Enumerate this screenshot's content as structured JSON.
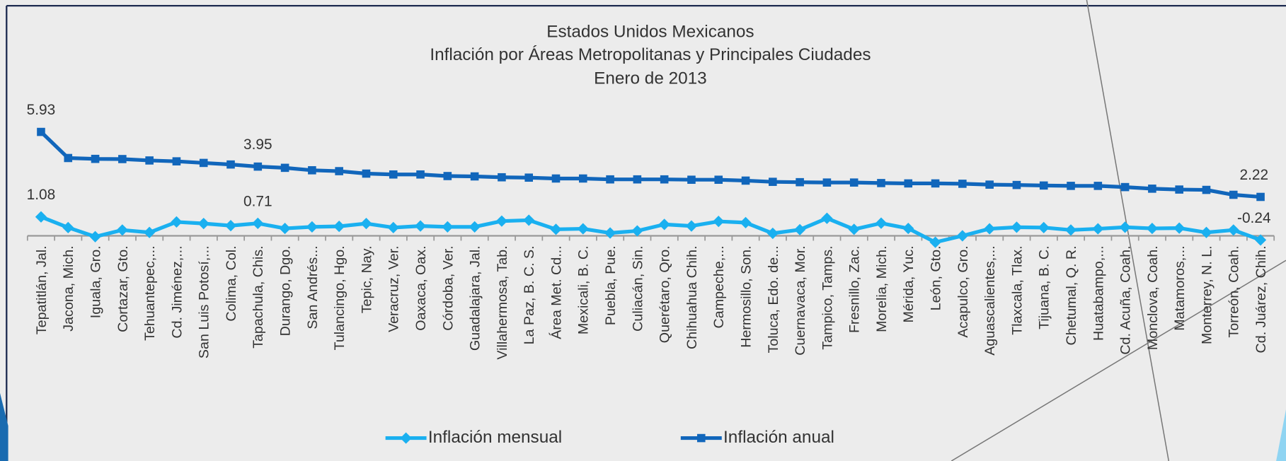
{
  "chart_data": {
    "type": "line",
    "title": [
      "Estados Unidos Mexicanos",
      "Inflación por Áreas Metropolitanas y Principales Ciudades",
      "Enero de 2013"
    ],
    "categories": [
      "Tepatitlán, Jal.",
      "Jacona, Mich.",
      "Iguala, Gro.",
      "Cortazar, Gto.",
      "Tehuantepec,...",
      "Cd. Jiménez,...",
      "San Luis Potosí,...",
      "Colima, Col.",
      "Tapachula, Chis.",
      "Durango, Dgo.",
      "San Andrés...",
      "Tulancingo, Hgo.",
      "Tepic, Nay.",
      "Veracruz, Ver.",
      "Oaxaca, Oax.",
      "Córdoba, Ver.",
      "Guadalajara, Jal.",
      "Villahermosa, Tab.",
      "La Paz, B. C. S.",
      "Área Met. Cd...",
      "Mexicali, B. C.",
      "Puebla, Pue.",
      "Culiacán, Sin.",
      "Querétaro, Qro.",
      "Chihuahua Chih.",
      "Campeche,...",
      "Hermosillo, Son.",
      "Toluca, Edo. de...",
      "Cuernavaca, Mor.",
      "Tampico, Tamps.",
      "Fresnillo, Zac.",
      "Morelia, Mich.",
      "Mérida, Yuc.",
      "León, Gto.",
      "Acapulco, Gro.",
      "Aguascalientes,...",
      "Tlaxcala, Tlax.",
      "Tijuana, B. C.",
      "Chetumal, Q. R.",
      "Huatabampo,...",
      "Cd. Acuña, Coah.",
      "Monclova, Coah.",
      "Matamoros,...",
      "Monterrey, N. L.",
      "Torreón, Coah.",
      "Cd. Juárez, Chih."
    ],
    "series": [
      {
        "name": "Inflación mensual",
        "color": "#1ab0f0",
        "marker": "diamond",
        "values": [
          1.08,
          0.47,
          -0.05,
          0.33,
          0.19,
          0.79,
          0.7,
          0.58,
          0.71,
          0.42,
          0.51,
          0.54,
          0.7,
          0.47,
          0.56,
          0.51,
          0.51,
          0.84,
          0.89,
          0.37,
          0.4,
          0.16,
          0.28,
          0.65,
          0.56,
          0.82,
          0.75,
          0.14,
          0.35,
          1.0,
          0.37,
          0.72,
          0.42,
          -0.37,
          0.0,
          0.4,
          0.49,
          0.47,
          0.33,
          0.4,
          0.49,
          0.42,
          0.44,
          0.19,
          0.33,
          -0.24
        ],
        "value_labels": [
          "1.08",
          null,
          null,
          null,
          null,
          null,
          null,
          null,
          "0.71",
          null,
          null,
          null,
          null,
          null,
          null,
          null,
          null,
          null,
          null,
          null,
          null,
          null,
          null,
          null,
          null,
          null,
          null,
          null,
          null,
          null,
          null,
          null,
          null,
          null,
          null,
          null,
          null,
          null,
          null,
          null,
          null,
          null,
          null,
          null,
          null,
          "-0.24"
        ]
      },
      {
        "name": "Inflación anual",
        "color": "#1166bb",
        "marker": "square",
        "values": [
          5.93,
          4.44,
          4.39,
          4.38,
          4.3,
          4.25,
          4.16,
          4.07,
          3.95,
          3.88,
          3.74,
          3.69,
          3.55,
          3.5,
          3.5,
          3.41,
          3.39,
          3.34,
          3.32,
          3.27,
          3.27,
          3.22,
          3.22,
          3.22,
          3.2,
          3.2,
          3.15,
          3.08,
          3.06,
          3.04,
          3.04,
          3.01,
          2.99,
          2.99,
          2.97,
          2.92,
          2.9,
          2.87,
          2.85,
          2.85,
          2.78,
          2.69,
          2.64,
          2.62,
          2.34,
          2.22
        ],
        "value_labels": [
          "5.93",
          null,
          null,
          null,
          null,
          null,
          null,
          null,
          "3.95",
          null,
          null,
          null,
          null,
          null,
          null,
          null,
          null,
          null,
          null,
          null,
          null,
          null,
          null,
          null,
          null,
          null,
          null,
          null,
          null,
          null,
          null,
          null,
          null,
          null,
          null,
          null,
          null,
          null,
          null,
          null,
          null,
          null,
          null,
          null,
          null,
          "2.22"
        ]
      }
    ],
    "ylim": [
      -0.6,
      6.5
    ],
    "grid": false,
    "legend": "bottom"
  }
}
